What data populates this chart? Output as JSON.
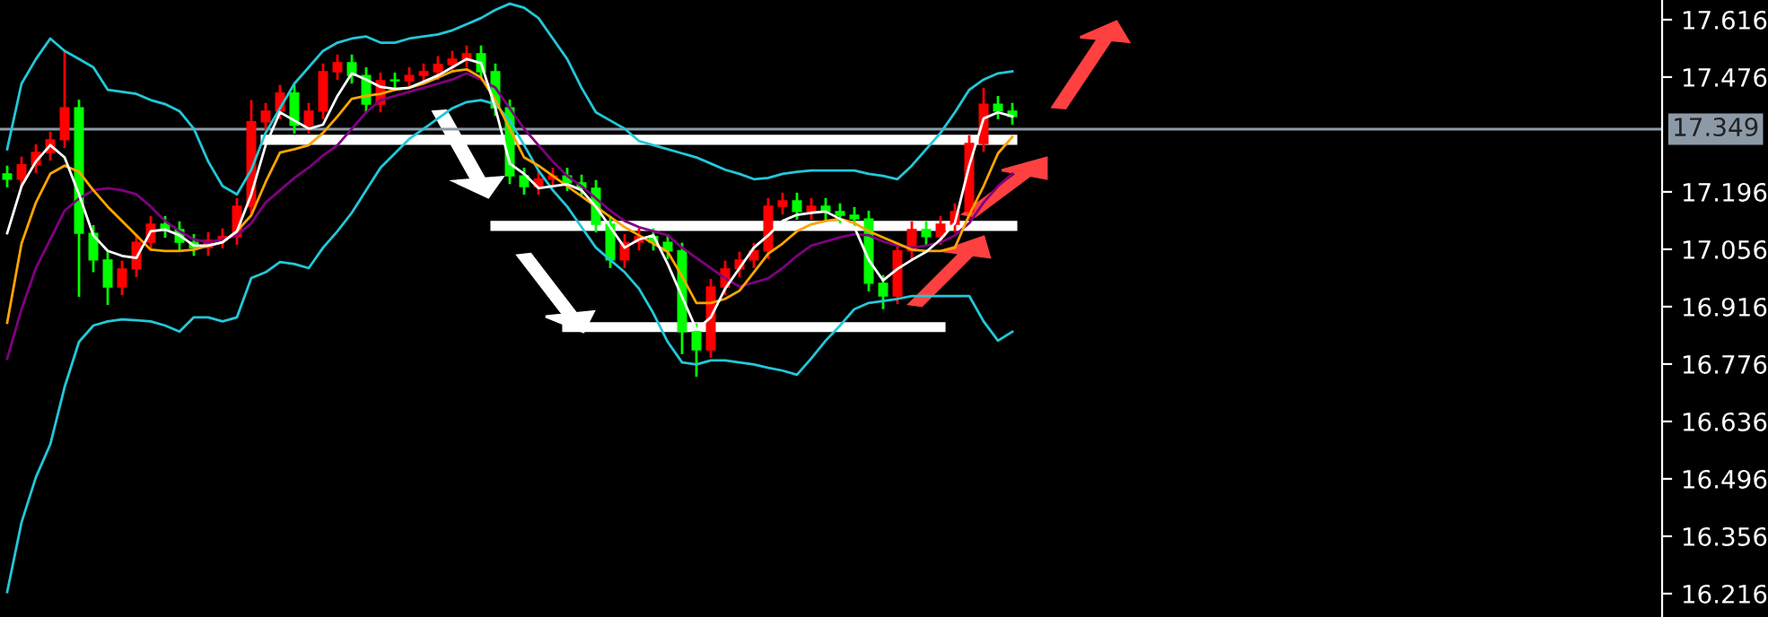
{
  "chart_data": {
    "type": "candlestick",
    "categories": [
      null,
      null,
      null,
      null,
      null,
      null,
      null,
      null,
      null,
      null,
      null,
      null,
      null,
      null,
      null,
      null,
      null,
      null,
      null,
      null,
      null,
      null,
      null,
      null,
      null,
      null,
      null,
      null,
      null,
      null,
      null,
      null,
      null,
      null,
      null,
      null,
      null,
      null,
      null,
      null,
      null,
      null,
      null,
      null,
      null,
      null,
      null,
      null,
      null,
      null,
      null,
      null,
      null,
      null,
      null,
      null,
      null,
      null,
      null,
      null,
      null,
      null,
      null,
      null,
      null,
      null,
      null,
      null,
      null,
      null,
      null
    ],
    "ohlc": [
      [
        17.24,
        17.26,
        17.207,
        17.227
      ],
      [
        17.227,
        17.282,
        17.207,
        17.262
      ],
      [
        17.262,
        17.312,
        17.242,
        17.292
      ],
      [
        17.292,
        17.343,
        17.272,
        17.323
      ],
      [
        17.323,
        17.54,
        17.303,
        17.401
      ],
      [
        17.401,
        17.421,
        16.94,
        17.095
      ],
      [
        17.095,
        17.115,
        17.0,
        17.03
      ],
      [
        17.03,
        17.05,
        16.92,
        16.964
      ],
      [
        16.964,
        17.028,
        16.944,
        17.008
      ],
      [
        17.008,
        17.093,
        16.988,
        17.073
      ],
      [
        17.073,
        17.137,
        17.053,
        17.117
      ],
      [
        17.117,
        17.137,
        17.084,
        17.104
      ],
      [
        17.104,
        17.124,
        17.053,
        17.073
      ],
      [
        17.073,
        17.093,
        17.04,
        17.06
      ],
      [
        17.06,
        17.098,
        17.04,
        17.078
      ],
      [
        17.078,
        17.107,
        17.058,
        17.087
      ],
      [
        17.087,
        17.181,
        17.067,
        17.161
      ],
      [
        17.161,
        17.42,
        17.141,
        17.367
      ],
      [
        17.367,
        17.413,
        17.347,
        17.393
      ],
      [
        17.393,
        17.457,
        17.373,
        17.437
      ],
      [
        17.437,
        17.457,
        17.338,
        17.358
      ],
      [
        17.358,
        17.413,
        17.338,
        17.393
      ],
      [
        17.393,
        17.509,
        17.373,
        17.489
      ],
      [
        17.489,
        17.531,
        17.469,
        17.511
      ],
      [
        17.511,
        17.531,
        17.46,
        17.48
      ],
      [
        17.48,
        17.5,
        17.39,
        17.41
      ],
      [
        17.41,
        17.487,
        17.39,
        17.467
      ],
      [
        17.467,
        17.487,
        17.447,
        17.467
      ],
      [
        17.467,
        17.5,
        17.447,
        17.48
      ],
      [
        17.48,
        17.509,
        17.46,
        17.489
      ],
      [
        17.489,
        17.527,
        17.469,
        17.507
      ],
      [
        17.507,
        17.54,
        17.487,
        17.52
      ],
      [
        17.52,
        17.553,
        17.5,
        17.533
      ],
      [
        17.533,
        17.553,
        17.469,
        17.489
      ],
      [
        17.489,
        17.509,
        17.381,
        17.401
      ],
      [
        17.401,
        17.421,
        17.215,
        17.235
      ],
      [
        17.235,
        17.255,
        17.189,
        17.209
      ],
      [
        17.209,
        17.247,
        17.189,
        17.227
      ],
      [
        17.227,
        17.255,
        17.207,
        17.235
      ],
      [
        17.235,
        17.255,
        17.198,
        17.218
      ],
      [
        17.218,
        17.238,
        17.185,
        17.205
      ],
      [
        17.205,
        17.225,
        17.097,
        17.117
      ],
      [
        17.117,
        17.137,
        17.01,
        17.03
      ],
      [
        17.03,
        17.093,
        17.01,
        17.073
      ],
      [
        17.073,
        17.107,
        17.053,
        17.087
      ],
      [
        17.087,
        17.107,
        17.053,
        17.073
      ],
      [
        17.073,
        17.093,
        17.032,
        17.052
      ],
      [
        17.052,
        17.072,
        16.8,
        16.855
      ],
      [
        16.855,
        16.875,
        16.745,
        16.811
      ],
      [
        16.811,
        16.984,
        16.791,
        16.964
      ],
      [
        16.964,
        17.028,
        16.944,
        17.008
      ],
      [
        17.008,
        17.05,
        16.988,
        17.03
      ],
      [
        17.03,
        17.072,
        17.01,
        17.052
      ],
      [
        17.052,
        17.181,
        17.032,
        17.161
      ],
      [
        17.161,
        17.194,
        17.141,
        17.174
      ],
      [
        17.174,
        17.194,
        17.128,
        17.148
      ],
      [
        17.148,
        17.181,
        17.128,
        17.161
      ],
      [
        17.161,
        17.181,
        17.128,
        17.148
      ],
      [
        17.148,
        17.168,
        17.119,
        17.139
      ],
      [
        17.139,
        17.159,
        17.11,
        17.13
      ],
      [
        17.13,
        17.15,
        16.953,
        16.973
      ],
      [
        16.973,
        16.993,
        16.91,
        16.942
      ],
      [
        16.942,
        17.072,
        16.922,
        17.052
      ],
      [
        17.052,
        17.124,
        17.032,
        17.104
      ],
      [
        17.104,
        17.124,
        17.067,
        17.087
      ],
      [
        17.087,
        17.137,
        17.067,
        17.117
      ],
      [
        17.117,
        17.168,
        17.097,
        17.148
      ],
      [
        17.148,
        17.334,
        17.128,
        17.314
      ],
      [
        17.314,
        17.45,
        17.294,
        17.41
      ],
      [
        17.41,
        17.43,
        17.373,
        17.393
      ],
      [
        17.393,
        17.413,
        17.36,
        17.38
      ]
    ],
    "colors": [
      "#00ff00",
      "#ff0000",
      "#ff0000",
      "#ff0000",
      "#ff0000",
      "#00ff00",
      "#00ff00",
      "#00ff00",
      "#ff0000",
      "#ff0000",
      "#ff0000",
      "#00ff00",
      "#00ff00",
      "#00ff00",
      "#ff0000",
      "#ff0000",
      "#ff0000",
      "#ff0000",
      "#ff0000",
      "#ff0000",
      "#00ff00",
      "#ff0000",
      "#ff0000",
      "#ff0000",
      "#00ff00",
      "#00ff00",
      "#ff0000",
      "#00ff00",
      "#ff0000",
      "#ff0000",
      "#ff0000",
      "#ff0000",
      "#ff0000",
      "#00ff00",
      "#00ff00",
      "#00ff00",
      "#00ff00",
      "#ff0000",
      "#ff0000",
      "#00ff00",
      "#00ff00",
      "#00ff00",
      "#00ff00",
      "#ff0000",
      "#ff0000",
      "#00ff00",
      "#00ff00",
      "#00ff00",
      "#00ff00",
      "#ff0000",
      "#ff0000",
      "#ff0000",
      "#ff0000",
      "#ff0000",
      "#ff0000",
      "#00ff00",
      "#ff0000",
      "#00ff00",
      "#00ff00",
      "#00ff00",
      "#00ff00",
      "#00ff00",
      "#ff0000",
      "#ff0000",
      "#00ff00",
      "#ff0000",
      "#ff0000",
      "#ff0000",
      "#ff0000",
      "#00ff00",
      "#00ff00"
    ],
    "series": [
      {
        "type": "line",
        "color": "#22c8d8",
        "values": [
          17.3,
          17.46,
          17.52,
          17.57,
          17.54,
          17.52,
          17.5,
          17.445,
          17.44,
          17.435,
          17.42,
          17.41,
          17.393,
          17.35,
          17.27,
          17.21,
          17.19,
          17.25,
          17.34,
          17.4,
          17.46,
          17.5,
          17.54,
          17.56,
          17.57,
          17.575,
          17.56,
          17.56,
          17.57,
          17.575,
          17.58,
          17.59,
          17.605,
          17.62,
          17.64,
          17.655,
          17.645,
          17.62,
          17.57,
          17.52,
          17.45,
          17.39,
          17.37,
          17.35,
          17.32,
          17.31,
          17.3,
          17.29,
          17.28,
          17.265,
          17.25,
          17.24,
          17.227,
          17.23,
          17.24,
          17.245,
          17.248,
          17.248,
          17.248,
          17.248,
          17.24,
          17.235,
          17.227,
          17.26,
          17.3,
          17.34,
          17.39,
          17.445,
          17.47,
          17.485,
          17.49
        ]
      },
      {
        "type": "line",
        "color": "#22c8d8",
        "values": [
          16.22,
          16.39,
          16.5,
          16.58,
          16.72,
          16.83,
          16.87,
          16.88,
          16.885,
          16.883,
          16.88,
          16.87,
          16.855,
          16.89,
          16.89,
          16.88,
          16.89,
          16.986,
          17.0,
          17.025,
          17.02,
          17.01,
          17.06,
          17.1,
          17.145,
          17.2,
          17.255,
          17.29,
          17.325,
          17.35,
          17.375,
          17.4,
          17.415,
          17.42,
          17.41,
          17.37,
          17.31,
          17.248,
          17.2,
          17.16,
          17.11,
          17.06,
          17.03,
          17.0,
          16.96,
          16.9,
          16.83,
          16.78,
          16.775,
          16.785,
          16.785,
          16.78,
          16.775,
          16.767,
          16.76,
          16.75,
          16.79,
          16.833,
          16.87,
          16.91,
          16.925,
          16.93,
          16.935,
          16.942,
          16.942,
          16.942,
          16.942,
          16.942,
          16.88,
          16.833,
          16.855
        ]
      },
      {
        "type": "line",
        "color": "#800080",
        "values": [
          16.789,
          16.91,
          17.01,
          17.08,
          17.15,
          17.18,
          17.2,
          17.205,
          17.2,
          17.19,
          17.16,
          17.125,
          17.1,
          17.08,
          17.073,
          17.08,
          17.09,
          17.12,
          17.17,
          17.2,
          17.23,
          17.255,
          17.285,
          17.31,
          17.35,
          17.39,
          17.42,
          17.43,
          17.44,
          17.45,
          17.46,
          17.47,
          17.485,
          17.47,
          17.45,
          17.4,
          17.35,
          17.31,
          17.27,
          17.235,
          17.21,
          17.18,
          17.15,
          17.125,
          17.11,
          17.1,
          17.09,
          17.06,
          17.035,
          17.01,
          16.985,
          16.965,
          16.975,
          16.985,
          17.01,
          17.04,
          17.065,
          17.075,
          17.085,
          17.093,
          17.09,
          17.075,
          17.065,
          17.06,
          17.065,
          17.073,
          17.09,
          17.12,
          17.17,
          17.21,
          17.24
        ]
      },
      {
        "type": "line",
        "color": "#ffa500",
        "values": [
          16.877,
          17.07,
          17.17,
          17.24,
          17.26,
          17.245,
          17.2,
          17.16,
          17.125,
          17.09,
          17.055,
          17.052,
          17.052,
          17.055,
          17.065,
          17.073,
          17.1,
          17.139,
          17.22,
          17.292,
          17.3,
          17.31,
          17.34,
          17.38,
          17.423,
          17.43,
          17.435,
          17.445,
          17.45,
          17.46,
          17.475,
          17.49,
          17.495,
          17.475,
          17.42,
          17.35,
          17.28,
          17.26,
          17.235,
          17.21,
          17.185,
          17.16,
          17.135,
          17.11,
          17.09,
          17.07,
          17.05,
          16.99,
          16.925,
          16.925,
          16.935,
          16.955,
          17.0,
          17.045,
          17.07,
          17.1,
          17.117,
          17.125,
          17.13,
          17.12,
          17.1,
          17.085,
          17.07,
          17.055,
          17.052,
          17.052,
          17.06,
          17.14,
          17.21,
          17.29,
          17.33
        ]
      },
      {
        "type": "line",
        "color": "#ffffff",
        "values": [
          17.095,
          17.21,
          17.27,
          17.31,
          17.28,
          17.19,
          17.09,
          17.052,
          17.04,
          17.035,
          17.1,
          17.104,
          17.09,
          17.065,
          17.065,
          17.073,
          17.1,
          17.19,
          17.31,
          17.39,
          17.37,
          17.35,
          17.36,
          17.43,
          17.485,
          17.47,
          17.452,
          17.447,
          17.45,
          17.465,
          17.48,
          17.5,
          17.52,
          17.51,
          17.4,
          17.265,
          17.24,
          17.205,
          17.21,
          17.215,
          17.2,
          17.16,
          17.11,
          17.06,
          17.08,
          17.09,
          17.02,
          16.94,
          16.86,
          16.89,
          16.96,
          17.01,
          17.06,
          17.09,
          17.125,
          17.14,
          17.145,
          17.148,
          17.13,
          17.11,
          17.03,
          16.98,
          17.008,
          17.03,
          17.05,
          17.08,
          17.12,
          17.26,
          17.375,
          17.39,
          17.38
        ]
      },
      {
        "type": "line",
        "color": "#ffffff",
        "values": [
          null,
          null,
          null,
          null,
          null,
          null,
          null,
          null,
          null,
          null,
          null,
          null,
          null,
          null,
          null,
          null,
          null,
          null,
          17.323,
          17.323,
          17.323,
          17.323,
          17.323,
          17.323,
          17.323,
          17.323,
          17.323,
          17.323,
          17.323,
          17.323,
          17.323,
          17.323,
          17.323,
          17.323,
          17.323,
          17.323,
          17.323,
          17.323,
          17.323,
          17.323,
          17.323,
          17.323,
          17.323,
          17.323,
          17.323,
          17.323,
          17.323,
          17.323,
          17.323,
          17.323,
          17.323,
          17.323,
          17.323,
          17.323,
          17.323,
          17.323,
          17.323,
          17.323,
          17.323,
          17.323,
          17.323,
          17.323,
          17.323,
          17.323,
          17.323,
          17.323,
          17.323,
          17.323,
          17.323,
          17.323,
          17.323
        ]
      },
      {
        "type": "line",
        "color": "#ffffff",
        "values": [
          null,
          null,
          null,
          null,
          null,
          null,
          null,
          null,
          null,
          null,
          null,
          null,
          null,
          null,
          null,
          null,
          null,
          null,
          null,
          null,
          null,
          null,
          null,
          null,
          null,
          null,
          null,
          null,
          null,
          null,
          null,
          null,
          null,
          null,
          17.113,
          17.113,
          17.113,
          17.113,
          17.113,
          17.113,
          17.113,
          17.113,
          17.113,
          17.113,
          17.113,
          17.113,
          17.113,
          17.113,
          17.113,
          17.113,
          17.113,
          17.113,
          17.113,
          17.113,
          17.113,
          17.113,
          17.113,
          17.113,
          17.113,
          17.113,
          17.113,
          17.113,
          17.113,
          17.113,
          17.113,
          17.113,
          17.113,
          17.113,
          17.113,
          17.113,
          17.113
        ]
      },
      {
        "type": "line",
        "color": "#ffffff",
        "values": [
          null,
          null,
          null,
          null,
          null,
          null,
          null,
          null,
          null,
          null,
          null,
          null,
          null,
          null,
          null,
          null,
          null,
          null,
          null,
          null,
          null,
          null,
          null,
          null,
          null,
          null,
          null,
          null,
          null,
          null,
          null,
          null,
          null,
          null,
          null,
          null,
          null,
          null,
          null,
          16.866,
          16.866,
          16.866,
          16.866,
          16.866,
          16.866,
          16.866,
          16.866,
          16.866,
          16.866,
          16.866,
          16.866,
          16.866,
          16.866,
          16.866,
          16.866,
          16.866,
          16.866,
          16.866,
          16.866,
          16.866,
          16.866,
          16.866,
          16.866,
          16.866,
          16.866,
          16.866,
          null,
          null,
          null,
          null,
          null
        ]
      }
    ],
    "ref_lines": [
      {
        "axis": "y",
        "value": 17.349,
        "label": "17.349",
        "color": "#8c9aa8"
      }
    ],
    "ylim": [
      16.159,
      17.664
    ],
    "yticks": [
      17.616,
      17.476,
      17.196,
      17.056,
      16.916,
      16.776,
      16.636,
      16.496,
      16.356,
      16.216
    ],
    "tick_labels": "y",
    "grid": false,
    "legend": false
  }
}
